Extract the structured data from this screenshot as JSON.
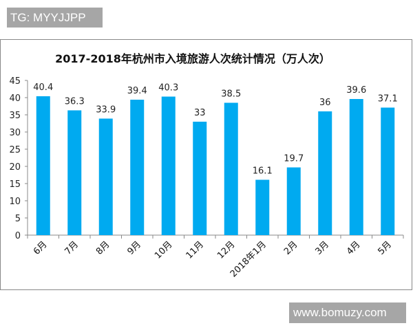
{
  "watermark_tag": "TG: MYYJJPP",
  "site_label": "www.bomuzy.com",
  "chart_data": {
    "type": "bar",
    "title": "2017-2018年杭州市入境旅游人次统计情况（万人次）",
    "categories": [
      "6月",
      "7月",
      "8月",
      "9月",
      "10月",
      "11月",
      "12月",
      "2018年1月",
      "2月",
      "3月",
      "4月",
      "5月"
    ],
    "values": [
      40.4,
      36.3,
      33.9,
      39.4,
      40.3,
      33,
      38.5,
      16.1,
      19.7,
      36,
      39.6,
      37.1
    ],
    "value_labels": [
      "40.4",
      "36.3",
      "33.9",
      "39.4",
      "40.3",
      "33",
      "38.5",
      "16.1",
      "19.7",
      "36",
      "39.6",
      "37.1"
    ],
    "yticks": [
      "0",
      "5",
      "10",
      "15",
      "20",
      "25",
      "30",
      "35",
      "40",
      "45"
    ],
    "ylim": [
      0,
      45
    ],
    "xlabel": "",
    "ylabel": "",
    "bar_color": "#00aaf0",
    "grid": false
  }
}
